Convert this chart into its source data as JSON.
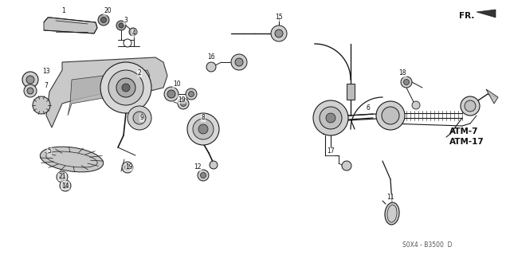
{
  "background_color": "#f5f5f0",
  "line_color": "#1a1a1a",
  "footer": "S0X4 - B3500  D",
  "atm7": "ATM-7",
  "atm17": "ATM-17",
  "fr": "FR."
}
